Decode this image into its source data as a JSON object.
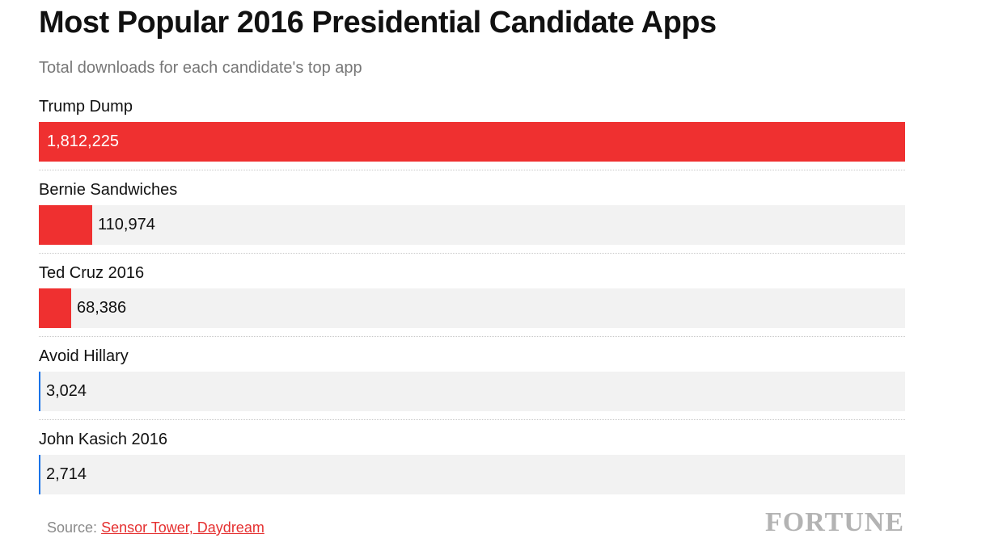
{
  "chart_data": {
    "type": "bar",
    "orientation": "horizontal",
    "title": "Most Popular 2016 Presidential Candidate Apps",
    "subtitle": "Total downloads for each candidate's top app",
    "categories": [
      "Trump Dump",
      "Bernie Sandwiches",
      "Ted Cruz 2016",
      "Avoid Hillary",
      "John Kasich 2016"
    ],
    "values": [
      1812225,
      110974,
      68386,
      3024,
      2714
    ],
    "value_labels": [
      "1,812,225",
      "110,974",
      "68,386",
      "3,024",
      "2,714"
    ],
    "xlim": [
      0,
      1812225
    ],
    "bar_colors": [
      "#ef3030",
      "#ef3030",
      "#ef3030",
      "#1a73e8",
      "#1a73e8"
    ],
    "track_color": "#f2f2f2",
    "grid": false,
    "legend": "none"
  },
  "footer": {
    "source_label": "Source:",
    "source_link": "Sensor Tower, Daydream"
  },
  "logo": "FORTUNE"
}
